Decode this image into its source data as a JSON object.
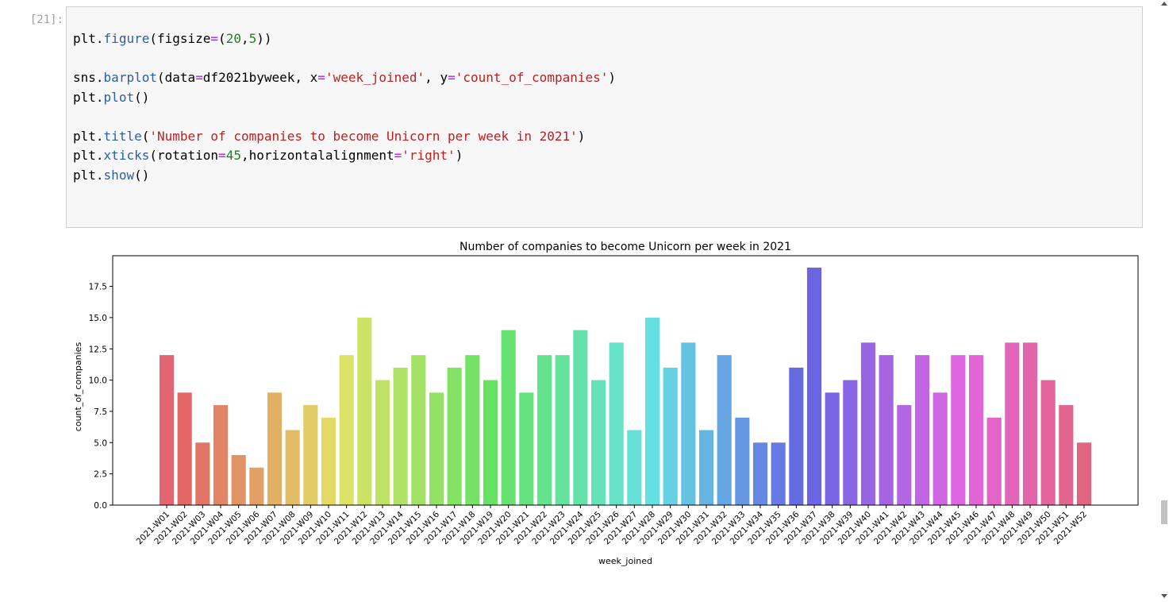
{
  "cell": {
    "prompt": "[21]:",
    "code_lines": [
      [
        {
          "t": "plt",
          "c": "name"
        },
        {
          "t": ".",
          "c": "p"
        },
        {
          "t": "figure",
          "c": "fn"
        },
        {
          "t": "(figsize",
          "c": "p"
        },
        {
          "t": "=",
          "c": "op"
        },
        {
          "t": "(",
          "c": "p"
        },
        {
          "t": "20",
          "c": "num"
        },
        {
          "t": ",",
          "c": "p"
        },
        {
          "t": "5",
          "c": "num"
        },
        {
          "t": "))",
          "c": "p"
        }
      ],
      [],
      [
        {
          "t": "sns",
          "c": "name"
        },
        {
          "t": ".",
          "c": "p"
        },
        {
          "t": "barplot",
          "c": "fn"
        },
        {
          "t": "(data",
          "c": "p"
        },
        {
          "t": "=",
          "c": "op"
        },
        {
          "t": "df2021byweek, x",
          "c": "p"
        },
        {
          "t": "=",
          "c": "op"
        },
        {
          "t": "'week_joined'",
          "c": "str"
        },
        {
          "t": ", y",
          "c": "p"
        },
        {
          "t": "=",
          "c": "op"
        },
        {
          "t": "'count_of_companies'",
          "c": "str"
        },
        {
          "t": ")",
          "c": "p"
        }
      ],
      [
        {
          "t": "plt",
          "c": "name"
        },
        {
          "t": ".",
          "c": "p"
        },
        {
          "t": "plot",
          "c": "fn"
        },
        {
          "t": "()",
          "c": "p"
        }
      ],
      [],
      [
        {
          "t": "plt",
          "c": "name"
        },
        {
          "t": ".",
          "c": "p"
        },
        {
          "t": "title",
          "c": "fn"
        },
        {
          "t": "(",
          "c": "p"
        },
        {
          "t": "'Number of companies to become Unicorn per week in 2021'",
          "c": "str"
        },
        {
          "t": ")",
          "c": "p"
        }
      ],
      [
        {
          "t": "plt",
          "c": "name"
        },
        {
          "t": ".",
          "c": "p"
        },
        {
          "t": "xticks",
          "c": "fn"
        },
        {
          "t": "(rotation",
          "c": "p"
        },
        {
          "t": "=",
          "c": "op"
        },
        {
          "t": "45",
          "c": "num"
        },
        {
          "t": ",horizontalalignment",
          "c": "p"
        },
        {
          "t": "=",
          "c": "op"
        },
        {
          "t": "'right'",
          "c": "str"
        },
        {
          "t": ")",
          "c": "p"
        }
      ],
      [
        {
          "t": "plt",
          "c": "name"
        },
        {
          "t": ".",
          "c": "p"
        },
        {
          "t": "show",
          "c": "fn"
        },
        {
          "t": "()",
          "c": "p"
        }
      ]
    ]
  },
  "colors": {
    "code_function": "#2b5ea8",
    "code_operator": "#aa22ff",
    "code_string": "#ba2121",
    "code_number": "#208020"
  },
  "chart_data": {
    "type": "bar",
    "title": "Number of companies to become Unicorn per week in 2021",
    "xlabel": "week_joined",
    "ylabel": "count_of_companies",
    "ylim": [
      0,
      19.95
    ],
    "yticks": [
      0.0,
      2.5,
      5.0,
      7.5,
      10.0,
      12.5,
      15.0,
      17.5
    ],
    "ytick_labels": [
      "0.0",
      "2.5",
      "5.0",
      "7.5",
      "10.0",
      "12.5",
      "15.0",
      "17.5"
    ],
    "grid": false,
    "legend": "none",
    "categories": [
      "2021-W01",
      "2021-W02",
      "2021-W03",
      "2021-W04",
      "2021-W05",
      "2021-W06",
      "2021-W07",
      "2021-W08",
      "2021-W09",
      "2021-W10",
      "2021-W11",
      "2021-W12",
      "2021-W13",
      "2021-W14",
      "2021-W15",
      "2021-W16",
      "2021-W17",
      "2021-W18",
      "2021-W19",
      "2021-W20",
      "2021-W21",
      "2021-W22",
      "2021-W23",
      "2021-W24",
      "2021-W25",
      "2021-W26",
      "2021-W27",
      "2021-W28",
      "2021-W29",
      "2021-W30",
      "2021-W31",
      "2021-W32",
      "2021-W33",
      "2021-W34",
      "2021-W35",
      "2021-W36",
      "2021-W37",
      "2021-W38",
      "2021-W39",
      "2021-W40",
      "2021-W41",
      "2021-W42",
      "2021-W43",
      "2021-W44",
      "2021-W45",
      "2021-W46",
      "2021-W47",
      "2021-W48",
      "2021-W49",
      "2021-W50",
      "2021-W51",
      "2021-W52"
    ],
    "values": [
      12,
      9,
      5,
      8,
      4,
      3,
      9,
      6,
      8,
      7,
      12,
      15,
      10,
      11,
      12,
      9,
      11,
      12,
      10,
      14,
      9,
      12,
      12,
      14,
      10,
      13,
      6,
      15,
      11,
      13,
      6,
      12,
      7,
      5,
      5,
      11,
      19,
      9,
      10,
      13,
      12,
      8,
      12,
      9,
      12,
      12,
      7,
      13,
      13,
      10,
      8,
      5
    ],
    "palette": "husl"
  }
}
